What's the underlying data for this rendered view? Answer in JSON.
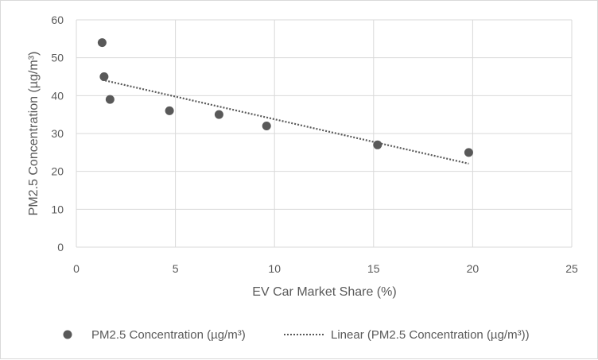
{
  "chart_data": {
    "type": "scatter",
    "title": "",
    "xlabel": "EV Car Market Share (%)",
    "ylabel": "PM2.5 Concentration (µg/m³)",
    "xlim": [
      0,
      25
    ],
    "ylim": [
      0,
      60
    ],
    "x_ticks": [
      "0",
      "5",
      "10",
      "15",
      "20",
      "25"
    ],
    "y_ticks": [
      "0",
      "10",
      "20",
      "30",
      "40",
      "50",
      "60"
    ],
    "grid": true,
    "legend_position": "bottom",
    "series": [
      {
        "name": "PM2.5 Concentration (µg/m³)",
        "color": "#595959",
        "points": [
          {
            "x": 1.3,
            "y": 54
          },
          {
            "x": 1.4,
            "y": 45
          },
          {
            "x": 1.7,
            "y": 39
          },
          {
            "x": 4.7,
            "y": 36
          },
          {
            "x": 7.2,
            "y": 35
          },
          {
            "x": 9.6,
            "y": 32
          },
          {
            "x": 15.2,
            "y": 27
          },
          {
            "x": 19.8,
            "y": 25
          }
        ]
      }
    ],
    "trendline": {
      "name": "Linear (PM2.5 Concentration (µg/m³))",
      "type": "linear",
      "style": "dotted",
      "color": "#595959"
    }
  }
}
